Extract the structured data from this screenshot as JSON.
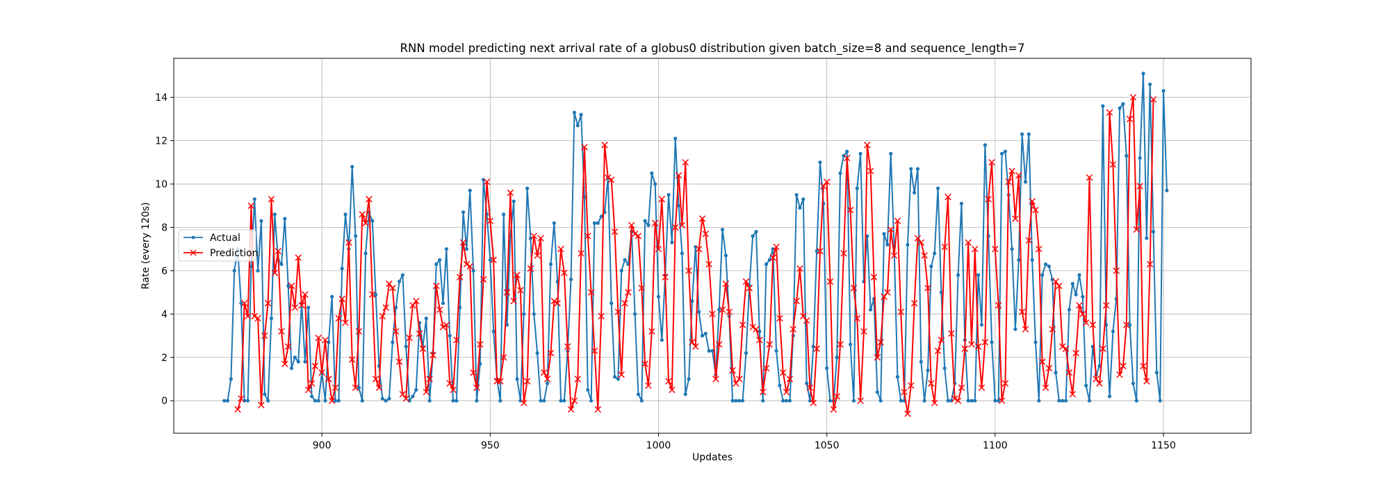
{
  "chart_data": {
    "type": "line",
    "title": "RNN model predicting next arrival rate of a globus0 distribution given batch_size=8 and sequence_length=7",
    "xlabel": "Updates",
    "ylabel": "Rate (every 120s)",
    "xlim": [
      856,
      1176
    ],
    "ylim": [
      -1.5,
      15.8
    ],
    "xticks": [
      900,
      950,
      1000,
      1050,
      1100,
      1150
    ],
    "yticks": [
      0,
      2,
      4,
      6,
      8,
      10,
      12,
      14
    ],
    "grid": true,
    "legend_position": "center-left",
    "series": [
      {
        "name": "Actual",
        "color": "#1f77b4",
        "marker": "point",
        "x_start": 871,
        "values": [
          0,
          0,
          1,
          6,
          7,
          4.5,
          0,
          0,
          6.2,
          9.3,
          6,
          8.3,
          0.3,
          0,
          3.8,
          8.6,
          6.5,
          6.3,
          8.4,
          5.3,
          1.5,
          2,
          1.8,
          4.5,
          1.8,
          4.3,
          0.2,
          0,
          0,
          1.3,
          0,
          2.7,
          4.8,
          0,
          0,
          6.1,
          8.6,
          7,
          10.8,
          7.6,
          0.6,
          0,
          6.8,
          8.7,
          8.3,
          4.9,
          1.6,
          0.1,
          0,
          0.1,
          2.7,
          4.3,
          5.5,
          5.8,
          2.5,
          0,
          0.2,
          0.5,
          3.6,
          2.5,
          3.8,
          0,
          2.2,
          6.3,
          6.5,
          4.5,
          7,
          3,
          0,
          0,
          4.3,
          8.7,
          7,
          9.7,
          6,
          0,
          1.7,
          10.2,
          8.6,
          6.5,
          3.2,
          1,
          0,
          8.6,
          3.5,
          7.6,
          9.2,
          1,
          0,
          4,
          9.8,
          7.5,
          4,
          2.2,
          0,
          0,
          0.8,
          6.3,
          8.2,
          5.5,
          0,
          0,
          2.3,
          5.6,
          13.3,
          12.7,
          13.2,
          9.4,
          0.5,
          0,
          8.2,
          8.2,
          8.5,
          8.7,
          10.3,
          4.5,
          1.1,
          1,
          6,
          6.5,
          6.3,
          7.8,
          4,
          0.3,
          0,
          8.3,
          8.1,
          10.5,
          10,
          4.8,
          2.8,
          5.8,
          9.5,
          7.3,
          12.1,
          9,
          6.8,
          0.3,
          1,
          4.6,
          7.1,
          4.1,
          3,
          3.1,
          2.3,
          2.3,
          1.2,
          4.2,
          7.9,
          6.7,
          3.9,
          0,
          0,
          0,
          0,
          2.2,
          5.3,
          7.6,
          7.8,
          3.2,
          0,
          6.3,
          6.5,
          7,
          2.3,
          0.7,
          0,
          0,
          0,
          3,
          9.5,
          8.9,
          9.3,
          0.8,
          0,
          2.5,
          6.9,
          11,
          9.1,
          1.5,
          0,
          0,
          2,
          10.5,
          11.3,
          11.5,
          2.6,
          0,
          9.8,
          11.4,
          5.5,
          7.6,
          4.2,
          4.7,
          0.4,
          0,
          7.7,
          7.2,
          11.4,
          7.1,
          1.1,
          0,
          0,
          7.2,
          10.7,
          9.6,
          10.7,
          1.8,
          0,
          1.4,
          6.2,
          6.8,
          9.8,
          5,
          1.5,
          0,
          0,
          0.8,
          5.8,
          9.1,
          2.8,
          0,
          0,
          0,
          5.8,
          3.5,
          11.8,
          7.6,
          2.7,
          0,
          0,
          11.4,
          11.5,
          9.5,
          7,
          3.3,
          6.5,
          12.3,
          10.1,
          12.3,
          6.5,
          2.7,
          0,
          5.8,
          6.3,
          6.2,
          5.6,
          1.3,
          0,
          0,
          0,
          4.2,
          5.4,
          4.9,
          5.8,
          4.8,
          0.7,
          0,
          2.5,
          1.2,
          1.6,
          13.6,
          3.5,
          0.2,
          3.2,
          4.7,
          13.5,
          13.7,
          11.3,
          3.5,
          0.8,
          0,
          11.2,
          15.1,
          7.5,
          14.6,
          7.8,
          1.3,
          0,
          14.3,
          9.7
        ]
      },
      {
        "name": "Prediction",
        "color": "#ff0000",
        "marker": "x",
        "x_start": 875,
        "values": [
          -0.4,
          0.1,
          4.5,
          3.9,
          9,
          3.9,
          3.8,
          -0.2,
          3,
          4.5,
          9.3,
          5.9,
          6.9,
          3.2,
          1.7,
          2.5,
          5.3,
          4.3,
          6.6,
          4.4,
          4.9,
          0.5,
          0.8,
          1.6,
          2.9,
          1.3,
          2.8,
          1,
          0,
          0.6,
          3.8,
          4.7,
          3.6,
          7.3,
          1.9,
          0.6,
          3.2,
          8.6,
          8.2,
          9.3,
          4.9,
          1,
          0.6,
          3.9,
          4.3,
          5.4,
          5.2,
          3.2,
          1.8,
          0.3,
          0.1,
          2.9,
          4.4,
          4.6,
          3.1,
          2.4,
          0.4,
          1,
          2.1,
          5.3,
          4.2,
          3.4,
          3.5,
          0.8,
          0.5,
          2.8,
          5.7,
          7.3,
          6.3,
          6.2,
          1.3,
          0.6,
          2.6,
          5.6,
          10.1,
          8.3,
          6.5,
          0.9,
          0.9,
          2,
          5,
          9.6,
          4.6,
          5.8,
          5.1,
          -0.1,
          0.9,
          6.1,
          7.6,
          6.7,
          7.5,
          1.3,
          1,
          2.2,
          4.6,
          4.5,
          7,
          5.9,
          2.5,
          -0.4,
          0,
          1,
          6.8,
          11.7,
          7.6,
          5,
          2.3,
          -0.4,
          3.9,
          11.8,
          10.3,
          10.2,
          7.8,
          4.1,
          1.2,
          4.5,
          5,
          8.1,
          7.7,
          7.6,
          5.2,
          1.7,
          0.7,
          3.2,
          8.2,
          7,
          9.3,
          5.7,
          0.9,
          0.5,
          8,
          10.4,
          8.1,
          11,
          6,
          2.7,
          2.5,
          7,
          8.4,
          7.7,
          6.3,
          4,
          1,
          2.6,
          4.2,
          5.4,
          4.1,
          1.4,
          0.8,
          1,
          3.5,
          5.5,
          5.2,
          3.4,
          3.3,
          2.8,
          0.4,
          1.5,
          2.6,
          6.6,
          7.1,
          3.8,
          1.3,
          0.4,
          1,
          3.3,
          4.6,
          6.1,
          3.9,
          3.7,
          0.6,
          -0.1,
          2.4,
          6.9,
          9.9,
          10.1,
          5.5,
          -0.4,
          0.2,
          2.6,
          6.8,
          11.2,
          8.8,
          5.2,
          3.8,
          0,
          3.2,
          11.8,
          10.6,
          5.7,
          2,
          2.7,
          4.8,
          5,
          7.9,
          6.7,
          8.3,
          4.1,
          0.4,
          -0.6,
          0.7,
          4.5,
          7.5,
          7.3,
          6.7,
          5.2,
          0.8,
          -0.1,
          2.3,
          2.8,
          7.1,
          9.4,
          3.1,
          0.1,
          0,
          0.6,
          2.4,
          7.3,
          2.6,
          7,
          2.5,
          0.6,
          2.7,
          9.3,
          11,
          7,
          4.4,
          0,
          0.8,
          10.1,
          10.6,
          8.4,
          10.4,
          4.1,
          3.3,
          7.4,
          9.2,
          8.8,
          7,
          1.8,
          0.6,
          1.5,
          3.3,
          5.5,
          5.3,
          2.5,
          2.4,
          1.3,
          0.3,
          2.2,
          4.4,
          4,
          3.6,
          10.3,
          3.5,
          1,
          0.8,
          2.4,
          4.4,
          13.3,
          10.9,
          6,
          1.2,
          1.6,
          3.5,
          13,
          14,
          7.9,
          9.9,
          1.6,
          0.9,
          6.3,
          13.9
        ]
      }
    ]
  }
}
